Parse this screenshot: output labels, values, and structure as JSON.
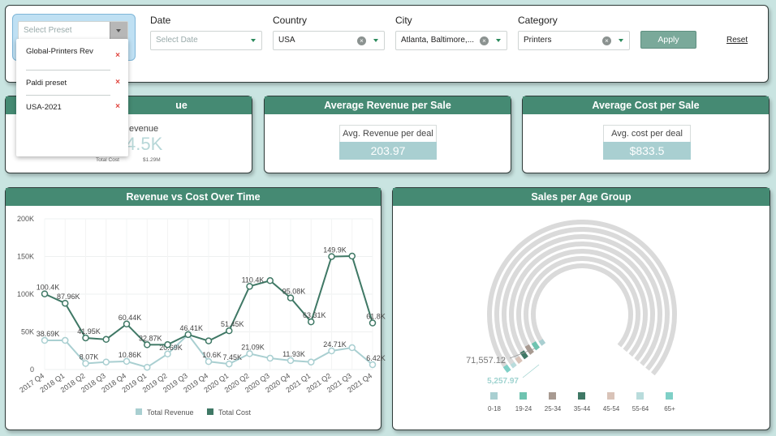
{
  "filters": {
    "preset": {
      "placeholder": "Select Preset"
    },
    "date": {
      "label": "Date",
      "placeholder": "Select Date"
    },
    "country": {
      "label": "Country",
      "value": "USA"
    },
    "city": {
      "label": "City",
      "value": "Atlanta, Baltimore,..."
    },
    "category": {
      "label": "Category",
      "value": "Printers"
    },
    "apply_label": "Apply",
    "reset_label": "Reset"
  },
  "preset_dropdown": {
    "items": [
      {
        "label": "Global-Printers Rev"
      },
      {
        "label": "Paldi preset"
      },
      {
        "label": "USA-2021"
      }
    ]
  },
  "kpi_cards": [
    {
      "title": "ue",
      "partial_label": "evenue",
      "partial_value": "4.5K",
      "sub_left": "Total Cost",
      "sub_right": "$1.29M"
    },
    {
      "title": "Average Revenue per Sale",
      "box_label": "Avg. Revenue per deal",
      "value": "203.97"
    },
    {
      "title": "Average Cost per Sale",
      "box_label": "Avg. cost per deal",
      "value": "$833.5"
    }
  ],
  "line_chart": {
    "title": "Revenue vs Cost Over Time",
    "chart_data": {
      "type": "line",
      "title": "Revenue vs Cost Over Time",
      "categories": [
        "2017 Q4",
        "2018 Q1",
        "2018 Q2",
        "2018 Q3",
        "2018 Q4",
        "2019 Q1",
        "2019 Q2",
        "2019 Q3",
        "2019 Q4",
        "2020 Q1",
        "2020 Q2",
        "2020 Q3",
        "2020 Q4",
        "2021 Q1",
        "2021 Q2",
        "2021 Q3",
        "2021 Q4"
      ],
      "yticks": [
        "0",
        "50K",
        "100K",
        "150K",
        "200K"
      ],
      "ylim": [
        0,
        200000
      ],
      "series": [
        {
          "name": "Total Revenue",
          "color": "#a9cfd1",
          "values": [
            38690,
            38690,
            8070,
            10000,
            10860,
            3000,
            20690,
            46410,
            10600,
            7450,
            21090,
            15000,
            11930,
            10000,
            24710,
            29000,
            6420
          ],
          "labels": [
            "38.69K",
            "",
            "8.07K",
            "",
            "10.86K",
            "",
            "20.69K",
            "",
            "10.6K",
            "7.45K",
            "21.09K",
            "",
            "11.93K",
            "",
            "24.71K",
            "",
            "6.42K"
          ]
        },
        {
          "name": "Total Cost",
          "color": "#3f7865",
          "values": [
            100400,
            87960,
            41950,
            40000,
            60440,
            32870,
            33000,
            46410,
            38000,
            51450,
            110400,
            118000,
            95080,
            63310,
            149900,
            150500,
            61800
          ],
          "labels": [
            "100.4K",
            "87.96K",
            "41.95K",
            "",
            "60.44K",
            "32.87K",
            "",
            "46.41K",
            "",
            "51.45K",
            "110.4K",
            "",
            "95.08K",
            "63.31K",
            "149.9K",
            "",
            "61.8K"
          ]
        }
      ],
      "legend": "bottom"
    }
  },
  "age_chart": {
    "title": "Sales per Age Group",
    "chart_data": {
      "type": "radial-bar",
      "title": "Sales per Age Group",
      "categories": [
        "0-18",
        "19-24",
        "25-34",
        "35-44",
        "45-54",
        "55-64",
        "65+"
      ],
      "colors": [
        "#a9cfd1",
        "#6fc3b0",
        "#a89a91",
        "#3f7865",
        "#d9c3b8",
        "#b9dcdc",
        "#7fd0c7"
      ],
      "annotations": [
        "71,557.12",
        "5,257.97"
      ],
      "legend": "bottom"
    }
  }
}
